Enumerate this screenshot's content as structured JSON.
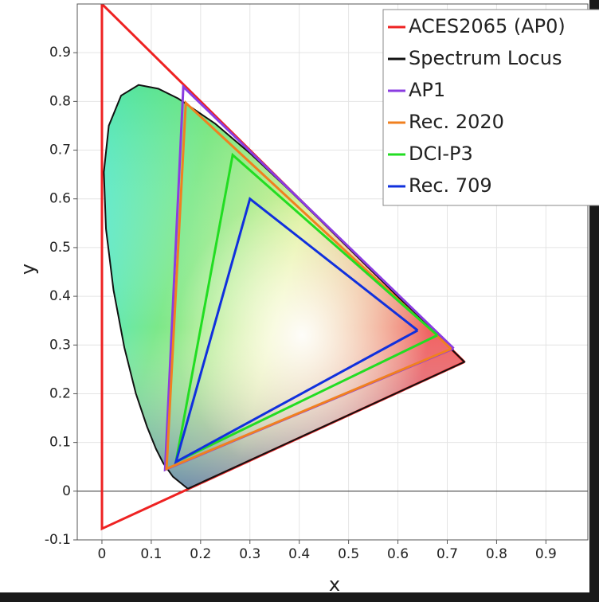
{
  "chart_data": {
    "type": "line",
    "x_label": "x",
    "y_label": "y",
    "xlim": [
      -0.05,
      0.985
    ],
    "ylim": [
      -0.1,
      1.0
    ],
    "xticks": [
      0,
      0.1,
      0.2,
      0.3,
      0.4,
      0.5,
      0.6,
      0.7,
      0.8,
      0.9
    ],
    "yticks": [
      -0.1,
      0,
      0.1,
      0.2,
      0.3,
      0.4,
      0.5,
      0.6,
      0.7,
      0.8,
      0.9
    ],
    "grid": true,
    "legend": "upper right",
    "series": [
      {
        "name": "ACES2065 (AP0)",
        "color": "#ee2222",
        "x": [
          0.7347,
          0,
          0.0001,
          0.7347
        ],
        "values": [
          0.2653,
          1.0,
          -0.077,
          0.2653
        ]
      },
      {
        "name": "Spectrum Locus",
        "color": "#111111",
        "x": [
          0.1741,
          0.144,
          0.1241,
          0.1096,
          0.0913,
          0.0687,
          0.0454,
          0.0235,
          0.0082,
          0.0039,
          0.0139,
          0.0389,
          0.0743,
          0.1142,
          0.1547,
          0.2296,
          0.3016,
          0.3731,
          0.4441,
          0.5125,
          0.5752,
          0.627,
          0.6915,
          0.726,
          0.7347,
          0.1741
        ],
        "values": [
          0.005,
          0.0297,
          0.0578,
          0.0868,
          0.1327,
          0.2007,
          0.295,
          0.4127,
          0.5384,
          0.6548,
          0.7502,
          0.812,
          0.8338,
          0.8262,
          0.8059,
          0.7543,
          0.6923,
          0.6245,
          0.5547,
          0.4866,
          0.4242,
          0.3725,
          0.3083,
          0.274,
          0.2653,
          0.005
        ]
      },
      {
        "name": "AP1",
        "color": "#8a3ce0",
        "x": [
          0.713,
          0.165,
          0.128,
          0.713
        ],
        "values": [
          0.293,
          0.83,
          0.044,
          0.293
        ]
      },
      {
        "name": "Rec. 2020",
        "color": "#f08020",
        "x": [
          0.708,
          0.17,
          0.131,
          0.708
        ],
        "values": [
          0.292,
          0.797,
          0.046,
          0.292
        ]
      },
      {
        "name": "DCI-P3",
        "color": "#22dd22",
        "x": [
          0.68,
          0.265,
          0.15,
          0.68
        ],
        "values": [
          0.32,
          0.69,
          0.06,
          0.32
        ]
      },
      {
        "name": "Rec. 709",
        "color": "#1030dd",
        "x": [
          0.64,
          0.3,
          0.15,
          0.64
        ],
        "values": [
          0.33,
          0.6,
          0.06,
          0.33
        ]
      }
    ]
  }
}
